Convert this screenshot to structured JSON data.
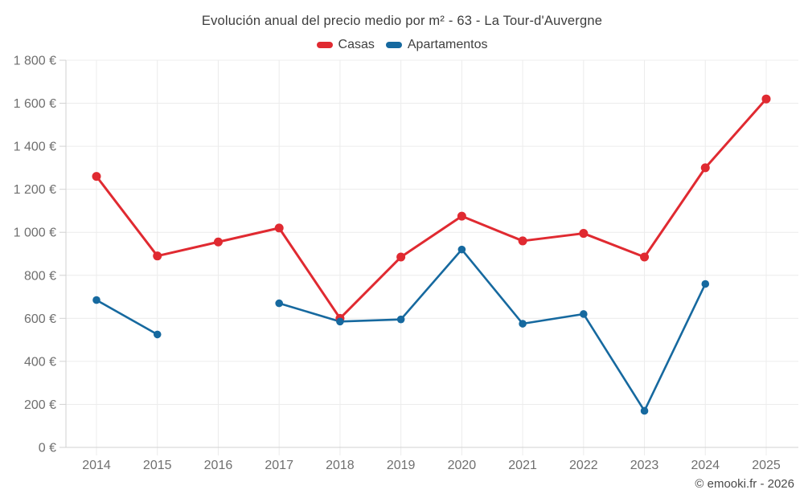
{
  "header": {
    "title": "Evolución anual del precio medio por m² - 63 - La Tour-d'Auvergne"
  },
  "legend": {
    "items": [
      {
        "label": "Casas",
        "color": "#e02a31"
      },
      {
        "label": "Apartamentos",
        "color": "#16699f"
      }
    ]
  },
  "footer": {
    "credit": "© emooki.fr - 2026"
  },
  "chart_data": {
    "type": "line",
    "title": "Evolución anual del precio medio por m² - 63 - La Tour-d'Auvergne",
    "categories": [
      "2014",
      "2015",
      "2016",
      "2017",
      "2018",
      "2019",
      "2020",
      "2021",
      "2022",
      "2023",
      "2024",
      "2025"
    ],
    "series": [
      {
        "name": "Casas",
        "color": "#e02a31",
        "marker_radius": 5.5,
        "line_width": 3,
        "values": [
          1260,
          890,
          955,
          1020,
          600,
          885,
          1075,
          960,
          995,
          885,
          1300,
          1620
        ]
      },
      {
        "name": "Apartamentos",
        "color": "#16699f",
        "marker_radius": 4.8,
        "line_width": 2.6,
        "values": [
          685,
          525,
          null,
          670,
          585,
          595,
          920,
          575,
          620,
          170,
          760,
          null
        ]
      }
    ],
    "xlabel": "",
    "ylabel": "",
    "ylim": [
      0,
      1800
    ],
    "ytick_step": 200,
    "ytick_labels": [
      "0 €",
      "200 €",
      "400 €",
      "600 €",
      "800 €",
      "1 000 €",
      "1 200 €",
      "1 400 €",
      "1 600 €",
      "1 800 €"
    ],
    "grid": true,
    "legend_position": "top",
    "annotations": []
  },
  "colors": {
    "background": "#ffffff",
    "grid": "#ececec",
    "axis": "#d2d2d2",
    "tick_text": "#6f6f6f",
    "title_text": "#3d3d3d",
    "credit_text": "#4a4a4a"
  }
}
